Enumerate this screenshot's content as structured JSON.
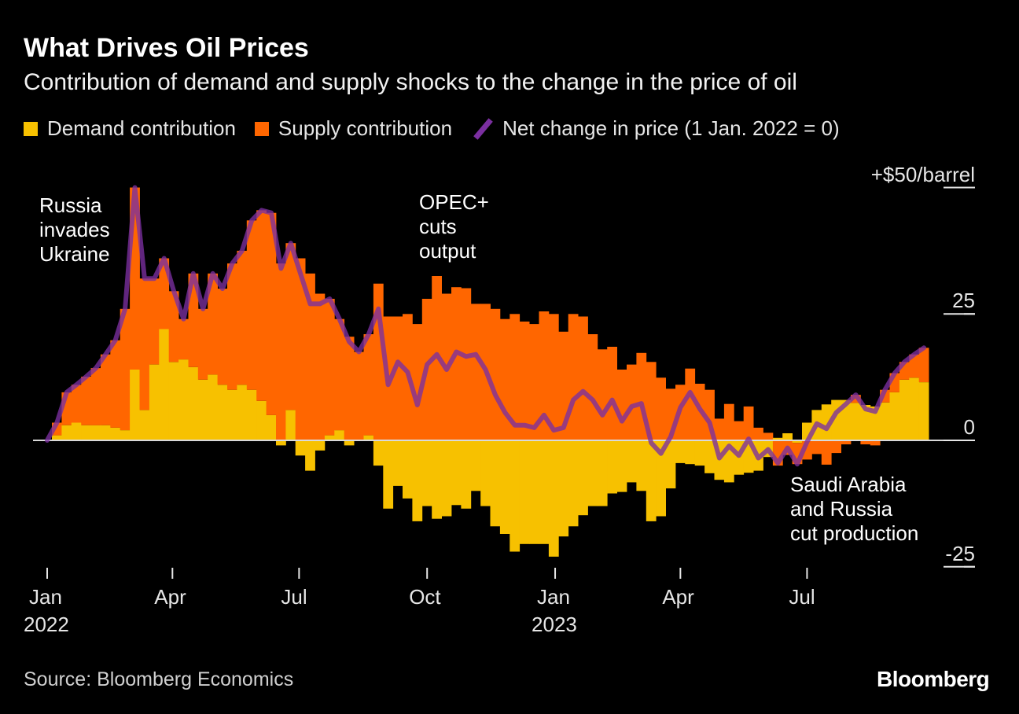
{
  "chart_data": {
    "type": "bar",
    "subtype": "diverging stacked bar with line overlay",
    "title": "What Drives Oil Prices",
    "subtitle": "Contribution of demand and supply shocks to the change in the price of oil",
    "ylabel": "",
    "y_unit_label": "+$50/barrel",
    "ylim": [
      -25,
      50
    ],
    "yticks": [
      {
        "value": 50,
        "label": "+$50/barrel"
      },
      {
        "value": 25,
        "label": "25"
      },
      {
        "value": 0,
        "label": "0"
      },
      {
        "value": -25,
        "label": "-25"
      }
    ],
    "xticks": [
      {
        "date": "2022-01-01",
        "label": "Jan",
        "year": "2022"
      },
      {
        "date": "2022-04-01",
        "label": "Apr",
        "year": ""
      },
      {
        "date": "2022-07-01",
        "label": "Jul",
        "year": ""
      },
      {
        "date": "2022-10-01",
        "label": "Oct",
        "year": ""
      },
      {
        "date": "2023-01-01",
        "label": "Jan",
        "year": "2023"
      },
      {
        "date": "2023-04-01",
        "label": "Apr",
        "year": ""
      },
      {
        "date": "2023-07-01",
        "label": "Jul",
        "year": ""
      }
    ],
    "grid": false,
    "legend_position": "top-left",
    "colors": {
      "demand": "#f7c100",
      "supply": "#ff6600",
      "net": "#7b2fa0",
      "baseline": "#d9d9d9"
    },
    "x": [
      "2022-01-01",
      "2022-01-08",
      "2022-01-15",
      "2022-01-22",
      "2022-01-29",
      "2022-02-05",
      "2022-02-12",
      "2022-02-19",
      "2022-02-26",
      "2022-03-05",
      "2022-03-12",
      "2022-03-19",
      "2022-03-26",
      "2022-04-02",
      "2022-04-09",
      "2022-04-16",
      "2022-04-23",
      "2022-04-30",
      "2022-05-07",
      "2022-05-14",
      "2022-05-21",
      "2022-05-28",
      "2022-06-04",
      "2022-06-11",
      "2022-06-18",
      "2022-06-25",
      "2022-07-02",
      "2022-07-09",
      "2022-07-16",
      "2022-07-23",
      "2022-07-30",
      "2022-08-06",
      "2022-08-13",
      "2022-08-20",
      "2022-08-27",
      "2022-09-03",
      "2022-09-10",
      "2022-09-17",
      "2022-09-24",
      "2022-10-01",
      "2022-10-08",
      "2022-10-15",
      "2022-10-22",
      "2022-10-29",
      "2022-11-05",
      "2022-11-12",
      "2022-11-19",
      "2022-11-26",
      "2022-12-03",
      "2022-12-10",
      "2022-12-17",
      "2022-12-24",
      "2022-12-31",
      "2023-01-07",
      "2023-01-14",
      "2023-01-21",
      "2023-01-28",
      "2023-02-04",
      "2023-02-11",
      "2023-02-18",
      "2023-02-25",
      "2023-03-04",
      "2023-03-11",
      "2023-03-18",
      "2023-03-25",
      "2023-04-01",
      "2023-04-08",
      "2023-04-15",
      "2023-04-22",
      "2023-04-29",
      "2023-05-06",
      "2023-05-13",
      "2023-05-20",
      "2023-05-27",
      "2023-06-03",
      "2023-06-10",
      "2023-06-17",
      "2023-06-24",
      "2023-07-01",
      "2023-07-08",
      "2023-07-15",
      "2023-07-22",
      "2023-07-29",
      "2023-08-05",
      "2023-08-12",
      "2023-08-19",
      "2023-08-26",
      "2023-09-02",
      "2023-09-09",
      "2023-09-16",
      "2023-09-23"
    ],
    "series": [
      {
        "name": "Demand contribution",
        "type": "bar",
        "values": [
          0,
          1,
          3,
          3.5,
          3,
          3,
          3,
          2.5,
          2,
          14,
          6,
          15,
          22,
          15.5,
          16,
          14.5,
          12,
          13,
          11,
          10,
          11,
          10,
          7.8,
          5,
          -1,
          6,
          -3,
          -6,
          -2,
          1,
          2,
          -1,
          0,
          1,
          -5,
          -13.5,
          -9,
          -11.5,
          -16,
          -13,
          -15.5,
          -15,
          -12.8,
          -13.5,
          -10,
          -13,
          -17,
          -18.5,
          -22,
          -20.5,
          -20.5,
          -20.5,
          -23,
          -19,
          -17,
          -14.8,
          -13,
          -13,
          -10.5,
          -10.2,
          -8.3,
          -10,
          -16,
          -15,
          -9.5,
          -4.5,
          -4.7,
          -5,
          -6.5,
          -7.8,
          -8.3,
          -6.8,
          -6.4,
          -6,
          -3.3,
          0.5,
          1.4,
          -0.5,
          3.5,
          6,
          7.1,
          8,
          8,
          7.4,
          7,
          6.7,
          7.5,
          9.5,
          12,
          12.4,
          11.5
        ]
      },
      {
        "name": "Supply contribution",
        "type": "bar",
        "values": [
          0,
          2.5,
          6.5,
          7.5,
          9.6,
          11.3,
          14,
          17.3,
          24,
          36,
          26,
          17,
          14,
          14,
          8,
          18.5,
          14,
          20,
          19,
          25,
          26.5,
          33.5,
          37.7,
          40,
          35,
          33,
          36,
          33,
          29,
          27,
          22,
          20.5,
          17.5,
          20,
          31,
          24.5,
          24.5,
          25,
          23,
          28,
          32.5,
          29,
          30.3,
          30.1,
          27,
          27,
          26,
          24,
          25,
          23.5,
          23,
          25.5,
          25,
          21.5,
          25,
          24.5,
          21,
          18,
          18.5,
          14,
          15,
          17.3,
          15.5,
          12.4,
          10.2,
          11,
          14.2,
          11.2,
          10,
          4.3,
          7.2,
          3.8,
          6.7,
          2.5,
          1.5,
          -5,
          -2.9,
          -4.2,
          -3.8,
          -2.7,
          -4.8,
          -2.5,
          -0.8,
          1.6,
          -0.8,
          -1,
          2.5,
          3.8,
          3.5,
          4.6,
          6.8
        ]
      },
      {
        "name": "Net change in price (1 Jan. 2022 = 0)",
        "type": "line",
        "values": [
          0,
          3.5,
          9.5,
          11,
          12.6,
          14.3,
          17,
          19.8,
          26,
          50,
          32,
          32,
          36,
          29.5,
          24,
          33,
          26,
          33,
          30,
          35,
          37.5,
          43.5,
          45.5,
          45,
          34,
          39,
          33,
          27,
          27,
          28,
          24,
          19.5,
          17.5,
          21,
          26,
          11,
          15.5,
          13.5,
          7,
          15,
          17,
          14,
          17.5,
          16.6,
          17,
          14,
          9,
          5.5,
          3,
          3,
          2.5,
          5,
          2,
          2.5,
          8,
          9.7,
          8,
          5,
          8,
          3.8,
          6.7,
          7.3,
          -0.5,
          -2.6,
          0.7,
          6.5,
          9.5,
          6.2,
          3.5,
          -3.5,
          -1.1,
          -3,
          0.3,
          -3.5,
          -1.8,
          -4.5,
          -1.5,
          -4.7,
          -0.3,
          3.3,
          2.3,
          5.5,
          7.2,
          9,
          6.2,
          5.7,
          10,
          13.3,
          15.5,
          17,
          18.3
        ]
      }
    ],
    "annotations": [
      {
        "date": "2022-02-24",
        "text": "Russia\ninvades\nUkraine"
      },
      {
        "date": "2022-10-05",
        "text": "OPEC+\ncuts\noutput"
      },
      {
        "date": "2023-07-01",
        "text": "Saudi Arabia\nand Russia\ncut production"
      }
    ]
  },
  "legend": {
    "demand": "Demand contribution",
    "supply": "Supply contribution",
    "net": "Net change in price (1 Jan. 2022 = 0)"
  },
  "footer": {
    "source": "Source: Bloomberg Economics",
    "logo": "Bloomberg"
  }
}
